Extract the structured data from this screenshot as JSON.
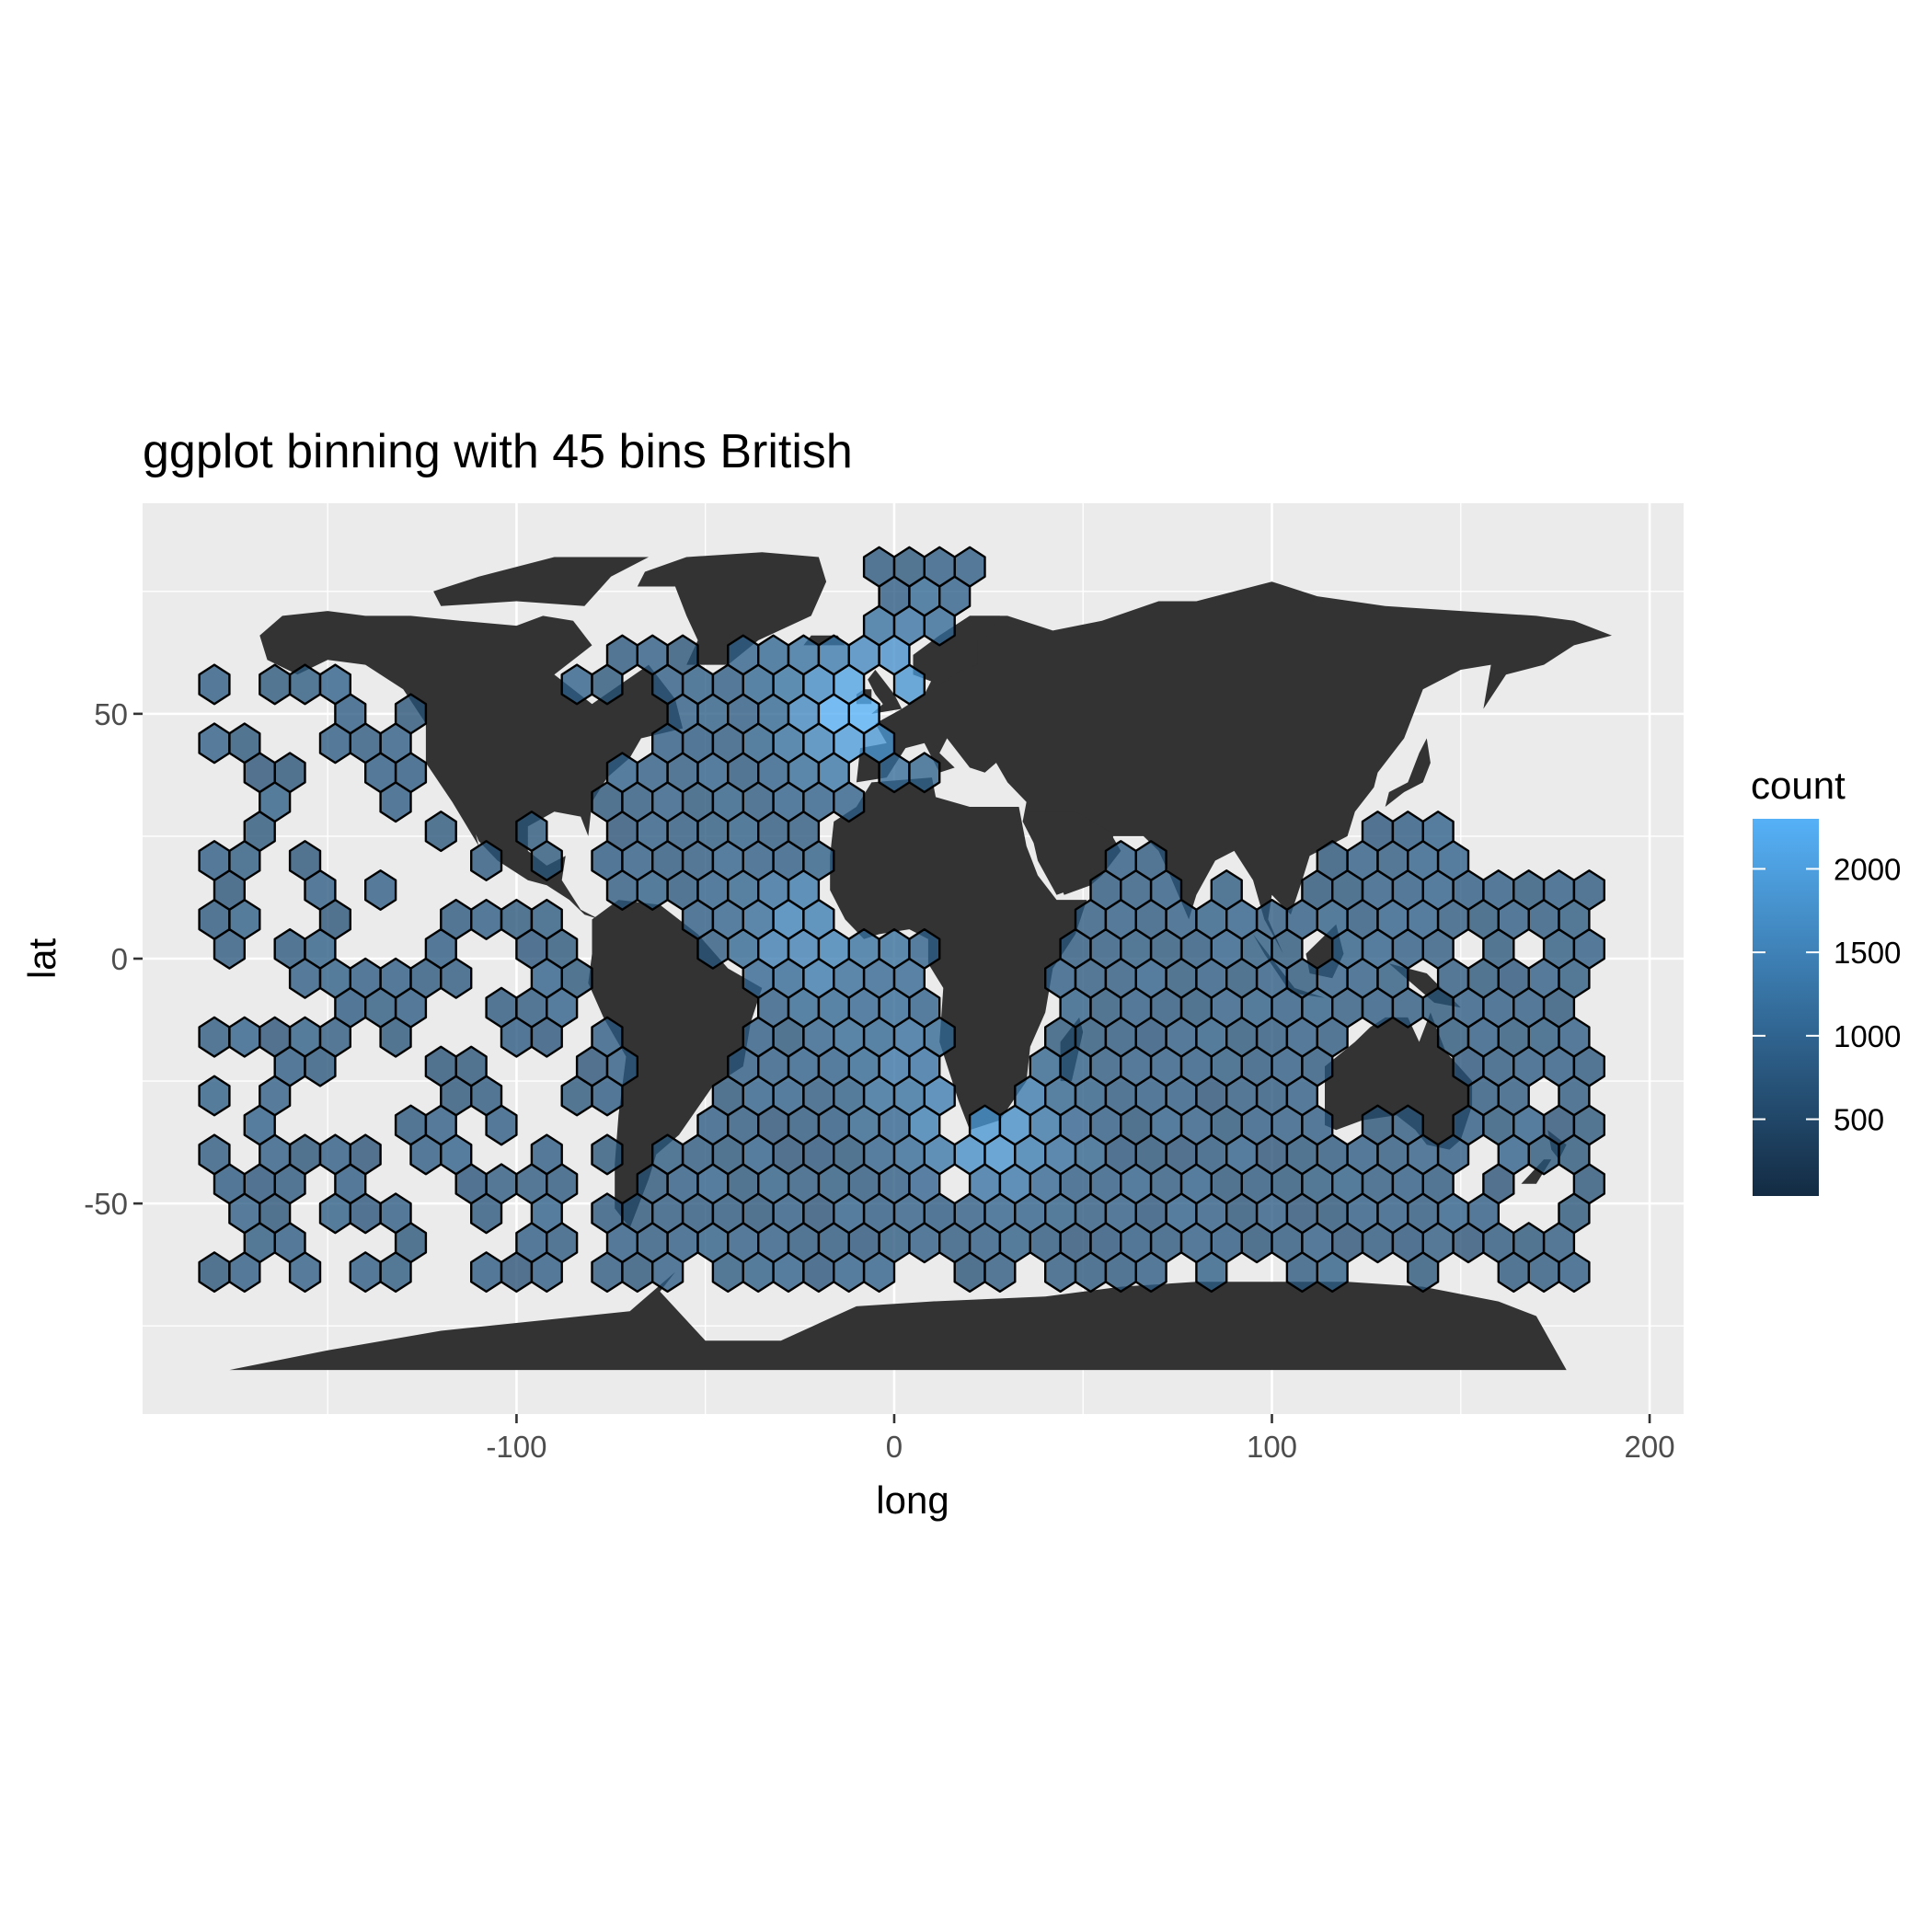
{
  "chart_data": {
    "type": "heatmap",
    "title": "ggplot binning with 45 bins British",
    "xlabel": "long",
    "ylabel": "lat",
    "xlim": [
      -199,
      209
    ],
    "ylim": [
      -93,
      93
    ],
    "x_ticks": [
      -100,
      0,
      100,
      200
    ],
    "x_tick_labels": [
      "-100",
      "0",
      "100",
      "200"
    ],
    "y_ticks": [
      -50,
      0,
      50
    ],
    "y_tick_labels": [
      "-50",
      "0",
      "50"
    ],
    "grid": true,
    "panel_background": "#ebebeb",
    "land_color": "#333333",
    "hex_outline_color": "#000000",
    "hex_opacity": 0.78,
    "legend": {
      "title": "count",
      "position": "right",
      "range": [
        40,
        2300
      ],
      "breaks": [
        500,
        1000,
        1500,
        2000
      ],
      "break_labels": [
        "500",
        "1000",
        "1500",
        "2000"
      ],
      "low_color": "#132b43",
      "high_color": "#56b1f7"
    },
    "hex_bins": {
      "binwidth_long": 8.0,
      "binheight_lat": 6.0,
      "hotspots": [
        {
          "long": -10,
          "lat": 50,
          "count": 2250
        },
        {
          "long": 25,
          "lat": -35,
          "count": 1900
        },
        {
          "long": -20,
          "lat": 5,
          "count": 1600
        },
        {
          "long": 5,
          "lat": 60,
          "count": 1300
        },
        {
          "long": 5,
          "lat": -20,
          "count": 1150
        }
      ],
      "baseline_count": 780
    }
  }
}
